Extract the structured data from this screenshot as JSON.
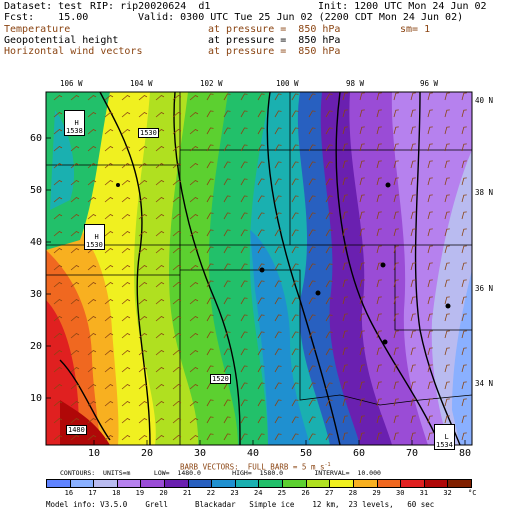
{
  "header": {
    "dataset": "Dataset: test",
    "rip": "RIP: rip20020624  d1",
    "init": "Init: 1200 UTC Mon 24 Jun 02",
    "fcst": "Fcst:    15.00",
    "valid": "Valid: 0300 UTC Tue 25 Jun 02 (2200 CDT Mon 24 Jun 02)",
    "fields": [
      {
        "name": "Temperature",
        "level": "at pressure =  850 hPa",
        "extra": "sm= 1"
      },
      {
        "name": "Geopotential height",
        "level": "at pressure =  850 hPa",
        "extra": ""
      },
      {
        "name": "Horizontal wind vectors",
        "level": "at pressure =  850 hPa",
        "extra": ""
      }
    ]
  },
  "map": {
    "lon_labels": [
      "106 W",
      "104 W",
      "102 W",
      "100 W",
      "98 W",
      "96 W"
    ],
    "lat_labels": [
      "40 N",
      "38 N",
      "36 N",
      "34 N"
    ],
    "x_ticks": [
      "10",
      "20",
      "30",
      "40",
      "50",
      "60",
      "70",
      "80"
    ],
    "y_ticks": [
      "10",
      "20",
      "30",
      "40",
      "50",
      "60"
    ],
    "contour_labels": [
      "1530",
      "1530",
      "1530",
      "1520",
      "1480",
      "1530"
    ],
    "hl_labels": [
      {
        "letter": "H",
        "value": "1538"
      },
      {
        "letter": "H",
        "value": "1530"
      },
      {
        "letter": "L",
        "value": "1534"
      }
    ]
  },
  "footer": {
    "barb_line": "BARB VECTORS:  FULL BARB = 5 m s",
    "contours_line": "CONTOURS:  UNITS=m      LOW=  1480.0        HIGH=  1580.0        INTERVAL=  10.000",
    "colorbar_values": [
      "16",
      "17",
      "18",
      "19",
      "20",
      "21",
      "22",
      "23",
      "24",
      "25",
      "26",
      "27",
      "28",
      "29",
      "30",
      "31",
      "32"
    ],
    "colorbar_unit": "°C",
    "model_info": "Model info: V3.5.0    Grell      Blackadar   Simple ice    12 km,  23 levels,   60 sec"
  },
  "colors": {
    "palette": [
      "#5f83ff",
      "#8ab0ff",
      "#b9bbf0",
      "#b681ee",
      "#9a4cd6",
      "#6a20b0",
      "#2860c0",
      "#1f90d0",
      "#1ab0b0",
      "#22c06a",
      "#5cd030",
      "#b0e020",
      "#f0f020",
      "#f8b020",
      "#f06820",
      "#e02020",
      "#b00808",
      "#802000"
    ]
  }
}
